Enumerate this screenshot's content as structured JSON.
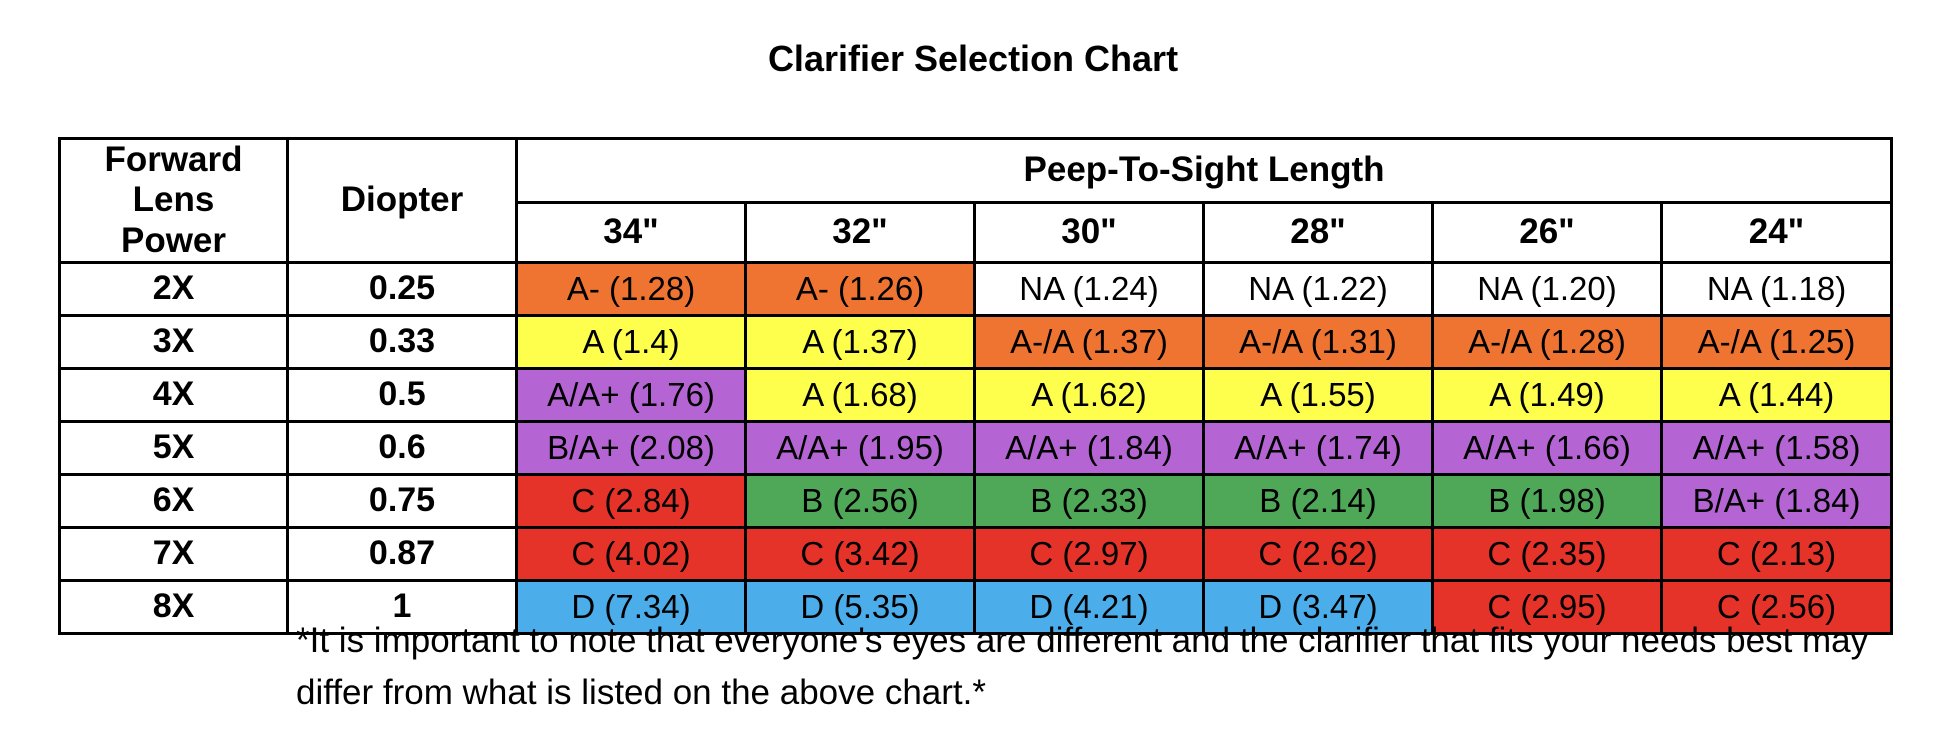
{
  "title": "Clarifier Selection Chart",
  "headers": {
    "lens_power": "Forward Lens Power",
    "diopter": "Diopter",
    "group": "Peep-To-Sight Length"
  },
  "colors": {
    "orange": "#ef7432",
    "yellow": "#fefe4c",
    "purple": "#b465d3",
    "red": "#e6332a",
    "green": "#4ea858",
    "blue": "#4badea",
    "white": "#ffffff"
  },
  "chart_data": {
    "type": "table",
    "title": "Clarifier Selection Chart",
    "columns": [
      "34\"",
      "32\"",
      "30\"",
      "28\"",
      "26\"",
      "24\""
    ],
    "rows": [
      {
        "power": "2X",
        "diopter": "0.25",
        "cells": [
          {
            "text": "A- (1.28)",
            "color": "orange"
          },
          {
            "text": "A- (1.26)",
            "color": "orange"
          },
          {
            "text": "NA (1.24)",
            "color": "white"
          },
          {
            "text": "NA (1.22)",
            "color": "white"
          },
          {
            "text": "NA (1.20)",
            "color": "white"
          },
          {
            "text": "NA (1.18)",
            "color": "white"
          }
        ]
      },
      {
        "power": "3X",
        "diopter": "0.33",
        "cells": [
          {
            "text": "A (1.4)",
            "color": "yellow"
          },
          {
            "text": "A (1.37)",
            "color": "yellow"
          },
          {
            "text": "A-/A (1.37)",
            "color": "orange"
          },
          {
            "text": "A-/A (1.31)",
            "color": "orange"
          },
          {
            "text": "A-/A (1.28)",
            "color": "orange"
          },
          {
            "text": "A-/A (1.25)",
            "color": "orange"
          }
        ]
      },
      {
        "power": "4X",
        "diopter": "0.5",
        "cells": [
          {
            "text": "A/A+ (1.76)",
            "color": "purple"
          },
          {
            "text": "A (1.68)",
            "color": "yellow"
          },
          {
            "text": "A (1.62)",
            "color": "yellow"
          },
          {
            "text": "A (1.55)",
            "color": "yellow"
          },
          {
            "text": "A (1.49)",
            "color": "yellow"
          },
          {
            "text": "A (1.44)",
            "color": "yellow"
          }
        ]
      },
      {
        "power": "5X",
        "diopter": "0.6",
        "cells": [
          {
            "text": "B/A+ (2.08)",
            "color": "purple"
          },
          {
            "text": "A/A+ (1.95)",
            "color": "purple"
          },
          {
            "text": "A/A+ (1.84)",
            "color": "purple"
          },
          {
            "text": "A/A+ (1.74)",
            "color": "purple"
          },
          {
            "text": "A/A+ (1.66)",
            "color": "purple"
          },
          {
            "text": "A/A+ (1.58)",
            "color": "purple"
          }
        ]
      },
      {
        "power": "6X",
        "diopter": "0.75",
        "cells": [
          {
            "text": "C (2.84)",
            "color": "red"
          },
          {
            "text": "B (2.56)",
            "color": "green"
          },
          {
            "text": "B (2.33)",
            "color": "green"
          },
          {
            "text": "B (2.14)",
            "color": "green"
          },
          {
            "text": "B (1.98)",
            "color": "green"
          },
          {
            "text": "B/A+ (1.84)",
            "color": "purple"
          }
        ]
      },
      {
        "power": "7X",
        "diopter": "0.87",
        "cells": [
          {
            "text": "C (4.02)",
            "color": "red"
          },
          {
            "text": "C (3.42)",
            "color": "red"
          },
          {
            "text": "C (2.97)",
            "color": "red"
          },
          {
            "text": "C (2.62)",
            "color": "red"
          },
          {
            "text": "C (2.35)",
            "color": "red"
          },
          {
            "text": "C (2.13)",
            "color": "red"
          }
        ]
      },
      {
        "power": "8X",
        "diopter": "1",
        "cells": [
          {
            "text": "D (7.34)",
            "color": "blue"
          },
          {
            "text": "D (5.35)",
            "color": "blue"
          },
          {
            "text": "D (4.21)",
            "color": "blue"
          },
          {
            "text": "D (3.47)",
            "color": "blue"
          },
          {
            "text": "C (2.95)",
            "color": "red"
          },
          {
            "text": "C (2.56)",
            "color": "red"
          }
        ]
      }
    ]
  },
  "note": "*It is important to note that everyone's eyes are different and the clarifier that fits your needs best may differ from what is listed on the above chart.*"
}
